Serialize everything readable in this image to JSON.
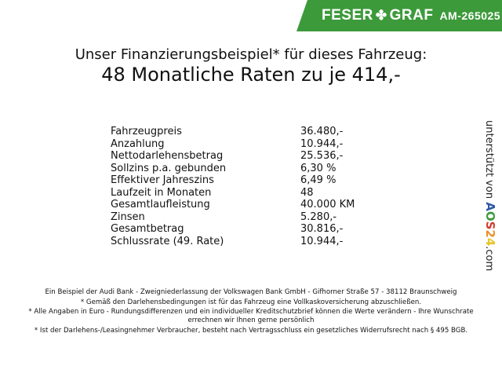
{
  "header": {
    "brand": "FESER",
    "brand2": "GRAF",
    "clover_icon": "clover-icon",
    "code": "AM-265025",
    "brand_color": "#3d9a3b"
  },
  "title": {
    "line1": "Unser Finanzierungsbeispiel* für dieses Fahrzeug:",
    "line2": "48 Monatliche Raten zu je 414,-"
  },
  "rows": [
    {
      "label": "Fahrzeugpreis",
      "value": "36.480,-"
    },
    {
      "label": "Anzahlung",
      "value": "10.944,-"
    },
    {
      "label": "Nettodarlehensbetrag",
      "value": "25.536,-"
    },
    {
      "label": "Sollzins p.a. gebunden",
      "value": "6,30 %"
    },
    {
      "label": "Effektiver Jahreszins",
      "value": "6,49 %"
    },
    {
      "label": "Laufzeit in Monaten",
      "value": "48"
    },
    {
      "label": "Gesamtlaufleistung",
      "value": "40.000 KM"
    },
    {
      "label": "Zinsen",
      "value": "5.280,-"
    },
    {
      "label": "Gesamtbetrag",
      "value": "30.816,-"
    },
    {
      "label": "Schlussrate (49. Rate)",
      "value": "10.944,-"
    }
  ],
  "side": {
    "prefix": "unterstützt von",
    "logo": [
      "A",
      "O",
      "S",
      "2",
      "4"
    ],
    "logo_colors": [
      "#2b57a5",
      "#3a9b3a",
      "#d23a2e",
      "#e8902a",
      "#e8c52a"
    ],
    "suffix": ".com"
  },
  "footer": [
    "Ein Beispiel der Audi Bank - Zweigniederlassung der Volkswagen Bank GmbH - Gifhorner Straße 57 - 38112 Braunschweig",
    "* Gemäß den Darlehensbedingungen ist für das Fahrzeug eine Vollkaskoversicherung abzuschließen.",
    "* Alle Angaben in Euro - Rundungsdifferenzen und ein individueller Kreditschutzbrief können die Werte verändern - Ihre Wunschrate errechnen wir Ihnen gerne persönlich",
    "* Ist der Darlehens-/Leasingnehmer Verbraucher, besteht nach Vertragsschluss ein gesetzliches Widerrufsrecht nach § 495 BGB."
  ]
}
